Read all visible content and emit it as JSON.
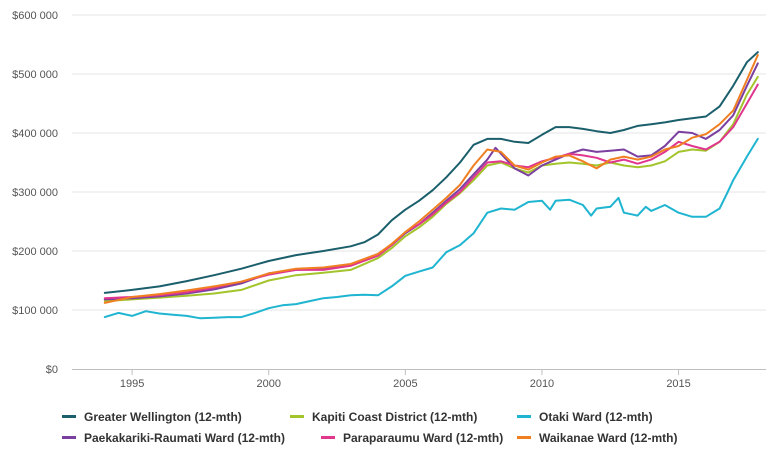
{
  "chart_data": {
    "type": "line",
    "title": "",
    "xlabel": "",
    "ylabel": "",
    "xlim": [
      1992.8,
      2018.2
    ],
    "ylim": [
      0,
      600000
    ],
    "x_ticks": [
      1995,
      2000,
      2005,
      2010,
      2015
    ],
    "x_tick_labels": [
      "1995",
      "2000",
      "2005",
      "2010",
      "2015"
    ],
    "y_ticks": [
      0,
      100000,
      200000,
      300000,
      400000,
      500000,
      600000
    ],
    "y_tick_labels": [
      "$0",
      "$100 000",
      "$200 000",
      "$300 000",
      "$400 000",
      "$500 000",
      "$600 000"
    ],
    "grid": "horizontal",
    "legend_position": "bottom",
    "series": [
      {
        "name": "Greater Wellington (12-mth)",
        "color": "#1a5f6b",
        "points": [
          [
            1994.0,
            129000
          ],
          [
            1995.0,
            134000
          ],
          [
            1996.0,
            140000
          ],
          [
            1997.0,
            149000
          ],
          [
            1998.0,
            159000
          ],
          [
            1999.0,
            170000
          ],
          [
            2000.0,
            183000
          ],
          [
            2001.0,
            193000
          ],
          [
            2002.0,
            200000
          ],
          [
            2003.0,
            208000
          ],
          [
            2003.5,
            215000
          ],
          [
            2004.0,
            228000
          ],
          [
            2004.5,
            252000
          ],
          [
            2005.0,
            270000
          ],
          [
            2005.5,
            285000
          ],
          [
            2006.0,
            303000
          ],
          [
            2006.5,
            325000
          ],
          [
            2007.0,
            350000
          ],
          [
            2007.5,
            380000
          ],
          [
            2008.0,
            390000
          ],
          [
            2008.5,
            390000
          ],
          [
            2009.0,
            385000
          ],
          [
            2009.5,
            383000
          ],
          [
            2010.0,
            397000
          ],
          [
            2010.5,
            410000
          ],
          [
            2011.0,
            410000
          ],
          [
            2011.5,
            407000
          ],
          [
            2012.0,
            403000
          ],
          [
            2012.5,
            400000
          ],
          [
            2013.0,
            405000
          ],
          [
            2013.5,
            412000
          ],
          [
            2014.0,
            415000
          ],
          [
            2014.5,
            418000
          ],
          [
            2015.0,
            422000
          ],
          [
            2015.5,
            425000
          ],
          [
            2016.0,
            428000
          ],
          [
            2016.5,
            445000
          ],
          [
            2017.0,
            480000
          ],
          [
            2017.5,
            520000
          ],
          [
            2017.9,
            537000
          ]
        ]
      },
      {
        "name": "Kapiti Coast District (12-mth)",
        "color": "#a3c42b",
        "points": [
          [
            1994.0,
            115000
          ],
          [
            1995.0,
            118000
          ],
          [
            1996.0,
            121000
          ],
          [
            1997.0,
            124000
          ],
          [
            1998.0,
            128000
          ],
          [
            1999.0,
            134000
          ],
          [
            2000.0,
            150000
          ],
          [
            2001.0,
            159000
          ],
          [
            2002.0,
            163000
          ],
          [
            2003.0,
            168000
          ],
          [
            2004.0,
            188000
          ],
          [
            2004.5,
            205000
          ],
          [
            2005.0,
            225000
          ],
          [
            2005.5,
            240000
          ],
          [
            2006.0,
            258000
          ],
          [
            2006.5,
            280000
          ],
          [
            2007.0,
            298000
          ],
          [
            2007.5,
            320000
          ],
          [
            2008.0,
            345000
          ],
          [
            2008.5,
            350000
          ],
          [
            2009.0,
            340000
          ],
          [
            2009.5,
            333000
          ],
          [
            2010.0,
            345000
          ],
          [
            2010.5,
            348000
          ],
          [
            2011.0,
            350000
          ],
          [
            2011.5,
            348000
          ],
          [
            2012.0,
            345000
          ],
          [
            2012.5,
            350000
          ],
          [
            2013.0,
            345000
          ],
          [
            2013.5,
            342000
          ],
          [
            2014.0,
            345000
          ],
          [
            2014.5,
            352000
          ],
          [
            2015.0,
            368000
          ],
          [
            2015.5,
            372000
          ],
          [
            2016.0,
            370000
          ],
          [
            2016.5,
            385000
          ],
          [
            2017.0,
            415000
          ],
          [
            2017.5,
            465000
          ],
          [
            2017.9,
            495000
          ]
        ]
      },
      {
        "name": "Otaki Ward (12-mth)",
        "color": "#1fb5d1",
        "points": [
          [
            1994.0,
            88000
          ],
          [
            1994.5,
            95000
          ],
          [
            1995.0,
            90000
          ],
          [
            1995.5,
            98000
          ],
          [
            1996.0,
            94000
          ],
          [
            1996.5,
            92000
          ],
          [
            1997.0,
            90000
          ],
          [
            1997.5,
            86000
          ],
          [
            1998.0,
            87000
          ],
          [
            1998.5,
            88000
          ],
          [
            1999.0,
            88000
          ],
          [
            1999.5,
            95000
          ],
          [
            2000.0,
            103000
          ],
          [
            2000.5,
            108000
          ],
          [
            2001.0,
            110000
          ],
          [
            2001.5,
            115000
          ],
          [
            2002.0,
            120000
          ],
          [
            2002.5,
            122000
          ],
          [
            2003.0,
            125000
          ],
          [
            2003.5,
            126000
          ],
          [
            2004.0,
            125000
          ],
          [
            2004.5,
            140000
          ],
          [
            2005.0,
            158000
          ],
          [
            2005.5,
            165000
          ],
          [
            2006.0,
            172000
          ],
          [
            2006.5,
            198000
          ],
          [
            2007.0,
            210000
          ],
          [
            2007.5,
            230000
          ],
          [
            2008.0,
            265000
          ],
          [
            2008.5,
            272000
          ],
          [
            2009.0,
            270000
          ],
          [
            2009.5,
            283000
          ],
          [
            2010.0,
            285000
          ],
          [
            2010.3,
            270000
          ],
          [
            2010.5,
            285000
          ],
          [
            2011.0,
            287000
          ],
          [
            2011.5,
            278000
          ],
          [
            2011.8,
            260000
          ],
          [
            2012.0,
            272000
          ],
          [
            2012.5,
            275000
          ],
          [
            2012.8,
            290000
          ],
          [
            2013.0,
            265000
          ],
          [
            2013.5,
            260000
          ],
          [
            2013.8,
            275000
          ],
          [
            2014.0,
            268000
          ],
          [
            2014.5,
            278000
          ],
          [
            2015.0,
            265000
          ],
          [
            2015.5,
            258000
          ],
          [
            2016.0,
            258000
          ],
          [
            2016.5,
            272000
          ],
          [
            2016.8,
            300000
          ],
          [
            2017.0,
            320000
          ],
          [
            2017.5,
            360000
          ],
          [
            2017.9,
            390000
          ]
        ]
      },
      {
        "name": "Paekakariki-Raumati Ward (12-mth)",
        "color": "#7b3fa0",
        "points": [
          [
            1994.0,
            118000
          ],
          [
            1995.0,
            120000
          ],
          [
            1996.0,
            123000
          ],
          [
            1997.0,
            128000
          ],
          [
            1998.0,
            135000
          ],
          [
            1999.0,
            145000
          ],
          [
            2000.0,
            162000
          ],
          [
            2001.0,
            168000
          ],
          [
            2002.0,
            170000
          ],
          [
            2003.0,
            177000
          ],
          [
            2004.0,
            195000
          ],
          [
            2004.5,
            210000
          ],
          [
            2005.0,
            230000
          ],
          [
            2005.5,
            245000
          ],
          [
            2006.0,
            265000
          ],
          [
            2006.5,
            285000
          ],
          [
            2007.0,
            305000
          ],
          [
            2007.5,
            330000
          ],
          [
            2008.0,
            355000
          ],
          [
            2008.3,
            375000
          ],
          [
            2008.7,
            355000
          ],
          [
            2009.0,
            340000
          ],
          [
            2009.5,
            328000
          ],
          [
            2010.0,
            345000
          ],
          [
            2010.5,
            355000
          ],
          [
            2011.0,
            365000
          ],
          [
            2011.5,
            372000
          ],
          [
            2012.0,
            368000
          ],
          [
            2012.5,
            370000
          ],
          [
            2013.0,
            372000
          ],
          [
            2013.5,
            360000
          ],
          [
            2014.0,
            362000
          ],
          [
            2014.5,
            378000
          ],
          [
            2015.0,
            402000
          ],
          [
            2015.5,
            400000
          ],
          [
            2016.0,
            390000
          ],
          [
            2016.5,
            405000
          ],
          [
            2017.0,
            430000
          ],
          [
            2017.5,
            480000
          ],
          [
            2017.9,
            518000
          ]
        ]
      },
      {
        "name": "Paraparaumu Ward (12-mth)",
        "color": "#e0368e",
        "points": [
          [
            1994.0,
            120000
          ],
          [
            1995.0,
            122000
          ],
          [
            1996.0,
            125000
          ],
          [
            1997.0,
            130000
          ],
          [
            1998.0,
            138000
          ],
          [
            1999.0,
            148000
          ],
          [
            2000.0,
            160000
          ],
          [
            2001.0,
            168000
          ],
          [
            2002.0,
            168000
          ],
          [
            2003.0,
            175000
          ],
          [
            2004.0,
            192000
          ],
          [
            2004.5,
            210000
          ],
          [
            2005.0,
            232000
          ],
          [
            2005.5,
            245000
          ],
          [
            2006.0,
            262000
          ],
          [
            2006.5,
            282000
          ],
          [
            2007.0,
            300000
          ],
          [
            2007.5,
            325000
          ],
          [
            2008.0,
            350000
          ],
          [
            2008.5,
            352000
          ],
          [
            2009.0,
            345000
          ],
          [
            2009.5,
            342000
          ],
          [
            2010.0,
            352000
          ],
          [
            2010.5,
            358000
          ],
          [
            2011.0,
            365000
          ],
          [
            2011.5,
            362000
          ],
          [
            2012.0,
            358000
          ],
          [
            2012.5,
            350000
          ],
          [
            2013.0,
            355000
          ],
          [
            2013.5,
            348000
          ],
          [
            2014.0,
            355000
          ],
          [
            2014.5,
            368000
          ],
          [
            2015.0,
            385000
          ],
          [
            2015.5,
            378000
          ],
          [
            2016.0,
            372000
          ],
          [
            2016.5,
            385000
          ],
          [
            2017.0,
            410000
          ],
          [
            2017.5,
            450000
          ],
          [
            2017.9,
            482000
          ]
        ]
      },
      {
        "name": "Waikanae Ward (12-mth)",
        "color": "#f07f22",
        "points": [
          [
            1994.0,
            112000
          ],
          [
            1995.0,
            122000
          ],
          [
            1996.0,
            127000
          ],
          [
            1997.0,
            133000
          ],
          [
            1998.0,
            140000
          ],
          [
            1999.0,
            148000
          ],
          [
            2000.0,
            162000
          ],
          [
            2001.0,
            170000
          ],
          [
            2002.0,
            172000
          ],
          [
            2003.0,
            178000
          ],
          [
            2004.0,
            195000
          ],
          [
            2004.5,
            212000
          ],
          [
            2005.0,
            232000
          ],
          [
            2005.5,
            250000
          ],
          [
            2006.0,
            270000
          ],
          [
            2006.5,
            290000
          ],
          [
            2007.0,
            312000
          ],
          [
            2007.5,
            345000
          ],
          [
            2008.0,
            372000
          ],
          [
            2008.5,
            368000
          ],
          [
            2009.0,
            345000
          ],
          [
            2009.5,
            338000
          ],
          [
            2010.0,
            350000
          ],
          [
            2010.5,
            360000
          ],
          [
            2011.0,
            362000
          ],
          [
            2011.5,
            352000
          ],
          [
            2012.0,
            340000
          ],
          [
            2012.5,
            355000
          ],
          [
            2013.0,
            360000
          ],
          [
            2013.5,
            355000
          ],
          [
            2014.0,
            360000
          ],
          [
            2014.5,
            372000
          ],
          [
            2015.0,
            378000
          ],
          [
            2015.5,
            392000
          ],
          [
            2016.0,
            398000
          ],
          [
            2016.5,
            415000
          ],
          [
            2017.0,
            438000
          ],
          [
            2017.5,
            490000
          ],
          [
            2017.9,
            532000
          ]
        ]
      }
    ]
  }
}
